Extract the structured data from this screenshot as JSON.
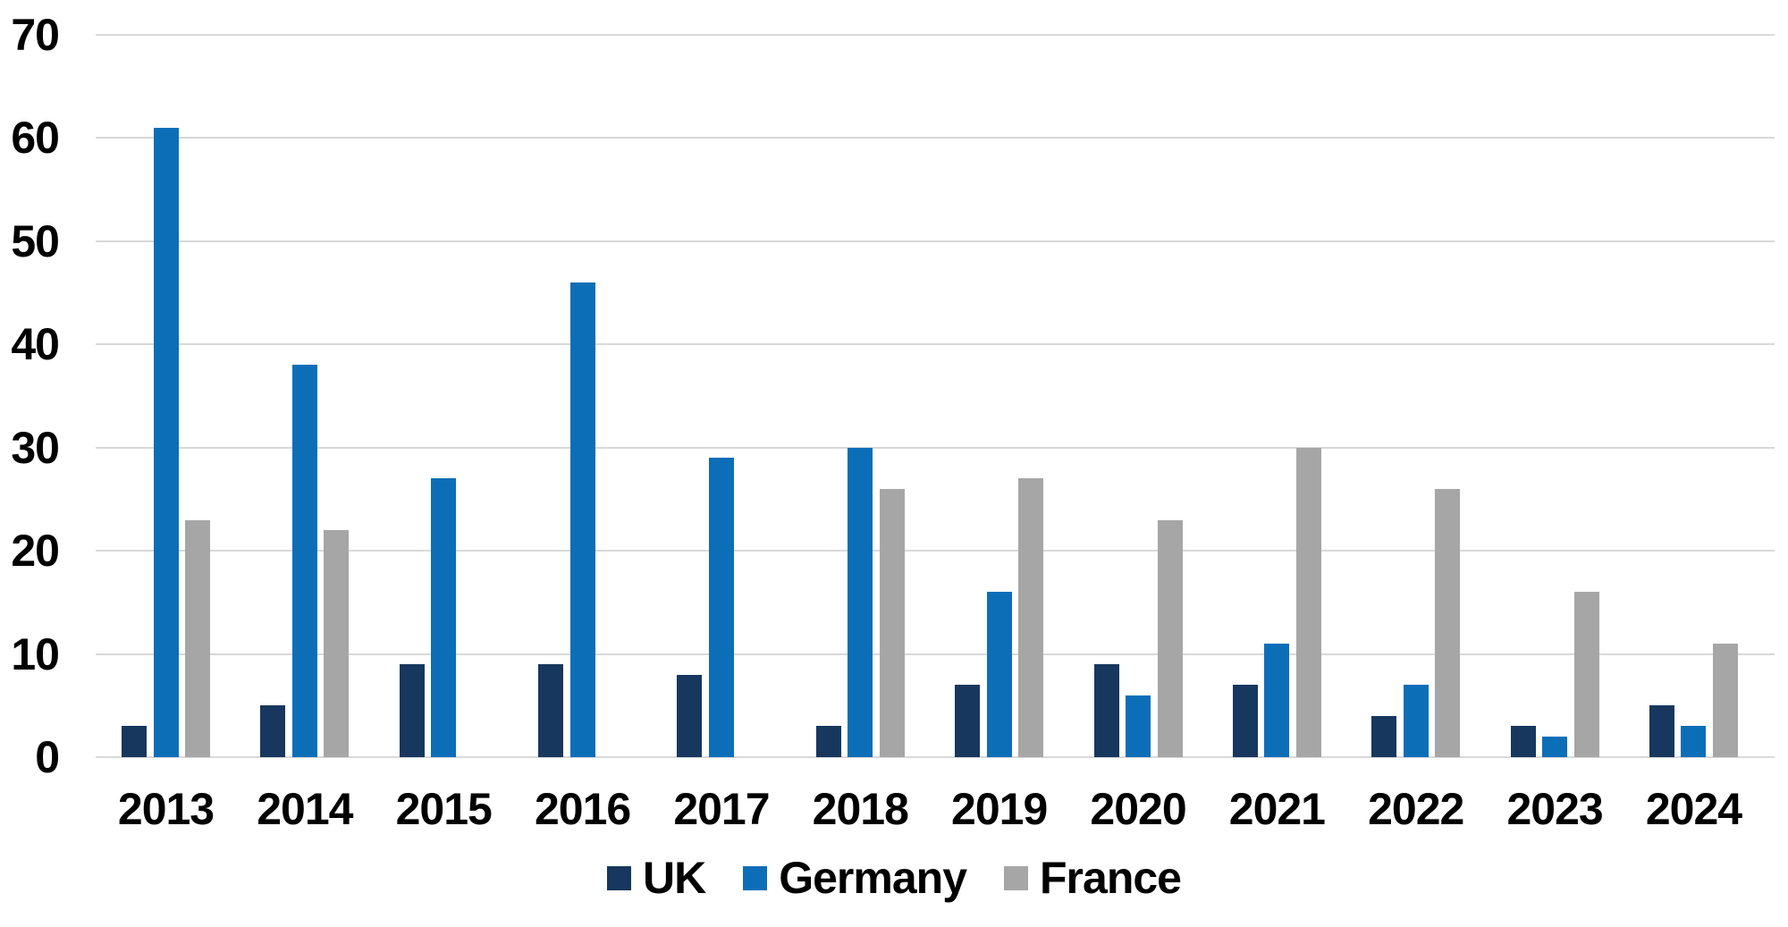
{
  "chart_data": {
    "type": "bar",
    "title": "",
    "categories": [
      "2013",
      "2014",
      "2015",
      "2016",
      "2017",
      "2018",
      "2019",
      "2020",
      "2021",
      "2022",
      "2023",
      "2024"
    ],
    "series": [
      {
        "name": "UK",
        "color": "#17375E",
        "values": [
          3,
          5,
          9,
          9,
          8,
          3,
          7,
          9,
          7,
          4,
          3,
          5
        ]
      },
      {
        "name": "Germany",
        "color": "#0D6EB8",
        "values": [
          61,
          38,
          27,
          46,
          29,
          30,
          16,
          6,
          11,
          7,
          2,
          3
        ]
      },
      {
        "name": "France",
        "color": "#A6A6A6",
        "values": [
          23,
          22,
          null,
          null,
          null,
          26,
          27,
          23,
          30,
          26,
          16,
          11
        ]
      }
    ],
    "xlabel": "",
    "ylabel": "",
    "ylim": [
      0,
      70
    ],
    "yticks": [
      0,
      10,
      20,
      30,
      40,
      50,
      60,
      70
    ],
    "grid": "horizontal",
    "legend_position": "bottom-center"
  },
  "colors": {
    "gridline": "#D9D9D9",
    "axis_text": "#000000",
    "background": "#FFFFFF"
  }
}
